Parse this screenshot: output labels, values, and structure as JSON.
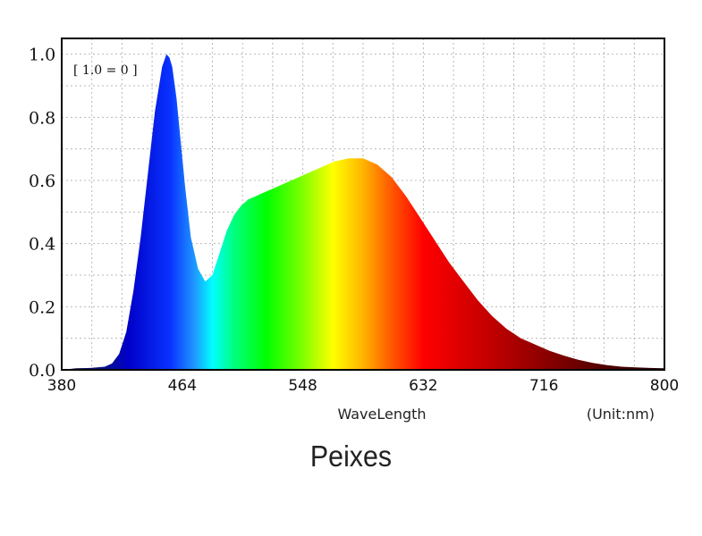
{
  "caption": "Peixes",
  "chart_data": {
    "type": "area",
    "normalization_label": "[ 1.0 = 0 ]",
    "xlabel": "WaveLength",
    "unit_label": "(Unit:nm)",
    "xlim": [
      380,
      800
    ],
    "ylim": [
      0,
      1.05
    ],
    "xticks": [
      380,
      464,
      548,
      632,
      716,
      800
    ],
    "yticks": [
      0,
      0.2,
      0.4,
      0.6,
      0.8,
      1.0
    ],
    "ytick_labels": [
      "0.0",
      "0.2",
      "0.4",
      "0.6",
      "0.8",
      "1.0"
    ],
    "grid": true,
    "fill": "visible-spectrum",
    "series": [
      {
        "x": [
          380,
          390,
          400,
          410,
          415,
          420,
          425,
          430,
          435,
          440,
          445,
          450,
          453,
          455,
          457,
          460,
          463,
          466,
          470,
          475,
          480,
          485,
          490,
          495,
          500,
          505,
          510,
          515,
          520,
          530,
          540,
          550,
          560,
          570,
          580,
          590,
          600,
          610,
          620,
          630,
          640,
          650,
          660,
          670,
          680,
          690,
          700,
          710,
          720,
          730,
          740,
          750,
          760,
          770,
          780,
          790,
          800
        ],
        "y": [
          0.0,
          0.005,
          0.006,
          0.01,
          0.02,
          0.05,
          0.12,
          0.25,
          0.42,
          0.62,
          0.82,
          0.96,
          1.0,
          0.99,
          0.96,
          0.86,
          0.72,
          0.58,
          0.42,
          0.32,
          0.28,
          0.3,
          0.37,
          0.44,
          0.49,
          0.52,
          0.54,
          0.55,
          0.56,
          0.58,
          0.6,
          0.62,
          0.64,
          0.66,
          0.67,
          0.67,
          0.65,
          0.61,
          0.55,
          0.48,
          0.41,
          0.34,
          0.28,
          0.22,
          0.17,
          0.13,
          0.1,
          0.08,
          0.06,
          0.045,
          0.032,
          0.022,
          0.015,
          0.01,
          0.008,
          0.006,
          0.005
        ]
      }
    ]
  }
}
